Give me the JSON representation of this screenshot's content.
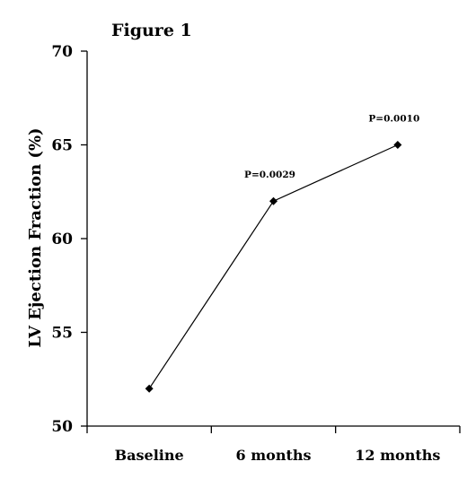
{
  "figure_label": "Figure 1",
  "chart_data": {
    "type": "line",
    "title": "",
    "xlabel": "",
    "ylabel": "LV Ejection Fraction (%)",
    "categories": [
      "Baseline",
      "6 months",
      "12 months"
    ],
    "values": [
      52,
      62,
      65
    ],
    "ylim": [
      50,
      70
    ],
    "yticks": [
      "50",
      "55",
      "60",
      "65",
      "70"
    ],
    "annotations": [
      "",
      "P=0.0029",
      "P=0.0010"
    ],
    "grid": false,
    "legend": "none",
    "line_color": "#000000",
    "marker": "diamond"
  }
}
